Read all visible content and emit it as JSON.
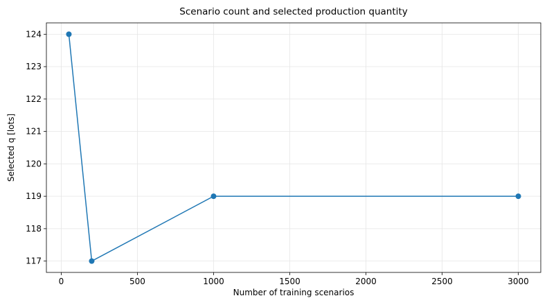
{
  "chart_data": {
    "type": "line",
    "title": "Scenario count and selected production quantity",
    "xlabel": "Number of training scenarios",
    "ylabel": "Selected q [lots]",
    "x": [
      50,
      200,
      1000,
      3000
    ],
    "series": [
      {
        "name": "Selected q",
        "color": "#1f77b4",
        "values": [
          124,
          117,
          119,
          119
        ]
      }
    ],
    "xlim": [
      -97.5,
      3147.5
    ],
    "xticks": [
      0,
      500,
      1000,
      1500,
      2000,
      2500,
      3000
    ],
    "ylim": [
      116.65,
      124.35
    ],
    "yticks": [
      117,
      118,
      119,
      120,
      121,
      122,
      123,
      124
    ],
    "grid": true,
    "markers": true
  }
}
